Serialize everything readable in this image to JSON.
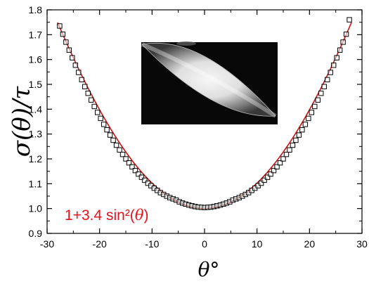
{
  "chart_data": {
    "type": "scatter",
    "xlabel": "θ°",
    "ylabel": "σ(θ)/τ",
    "xlim": [
      -30,
      30
    ],
    "ylim": [
      0.9,
      1.8
    ],
    "x_ticks": [
      -30,
      -20,
      -10,
      0,
      10,
      20,
      30
    ],
    "x_tick_labels": [
      "-30",
      "-20",
      "-10",
      "0",
      "10",
      "20",
      "30"
    ],
    "y_ticks": [
      0.9,
      1.0,
      1.1,
      1.2,
      1.3,
      1.4,
      1.5,
      1.6,
      1.7,
      1.8
    ],
    "y_tick_labels": [
      "0.9",
      "1.0",
      "1.1",
      "1.2",
      "1.3",
      "1.4",
      "1.5",
      "1.6",
      "1.7",
      "1.8"
    ],
    "grid": false,
    "annotation": {
      "prefix": "1+3.4 sin²(",
      "var": "θ",
      "suffix": ")",
      "color": "#e8101a"
    },
    "fit_curve": {
      "formula": "1+3.4 sin²(θ)",
      "coefficient": 3.4,
      "color": "#c81414"
    },
    "inset_image": {
      "content": "grayscale micrograph of a bright lens-shaped (lenticular) region",
      "position": "top-center"
    },
    "series": [
      {
        "marker": "open-square",
        "color": "#000000",
        "x": [
          -27.6,
          -27.0,
          -26.4,
          -25.8,
          -25.2,
          -24.6,
          -24.0,
          -23.4,
          -22.8,
          -22.2,
          -21.6,
          -21.0,
          -20.4,
          -19.8,
          -19.2,
          -18.6,
          -18.0,
          -17.4,
          -16.8,
          -16.2,
          -15.6,
          -15.0,
          -14.4,
          -13.8,
          -13.2,
          -12.6,
          -12.0,
          -11.4,
          -10.8,
          -10.2,
          -9.6,
          -9.0,
          -8.4,
          -7.8,
          -7.2,
          -6.6,
          -6.0,
          -5.4,
          -4.8,
          -4.2,
          -3.6,
          -3.0,
          -2.4,
          -1.8,
          -1.2,
          -0.6,
          0.0,
          0.6,
          1.2,
          1.8,
          2.4,
          3.0,
          3.6,
          4.2,
          4.8,
          5.4,
          6.0,
          6.6,
          7.2,
          7.8,
          8.4,
          9.0,
          9.6,
          10.2,
          10.8,
          11.4,
          12.0,
          12.6,
          13.2,
          13.8,
          14.4,
          15.0,
          15.6,
          16.2,
          16.8,
          17.4,
          18.0,
          18.6,
          19.2,
          19.8,
          20.4,
          21.0,
          21.6,
          22.2,
          22.8,
          23.4,
          24.0,
          24.6,
          25.2,
          25.8,
          26.4,
          27.0,
          27.6
        ],
        "y": [
          1.735,
          1.702,
          1.67,
          1.638,
          1.607,
          1.577,
          1.548,
          1.519,
          1.491,
          1.464,
          1.437,
          1.411,
          1.387,
          1.363,
          1.339,
          1.317,
          1.296,
          1.275,
          1.255,
          1.236,
          1.218,
          1.2,
          1.184,
          1.168,
          1.153,
          1.139,
          1.126,
          1.114,
          1.102,
          1.092,
          1.082,
          1.073,
          1.064,
          1.057,
          1.05,
          1.044,
          1.039,
          1.034,
          1.027,
          1.022,
          1.018,
          1.014,
          1.011,
          1.008,
          1.006,
          1.005,
          1.004,
          1.005,
          1.006,
          1.008,
          1.011,
          1.014,
          1.018,
          1.022,
          1.027,
          1.034,
          1.039,
          1.044,
          1.05,
          1.057,
          1.064,
          1.073,
          1.082,
          1.092,
          1.102,
          1.114,
          1.126,
          1.139,
          1.153,
          1.168,
          1.184,
          1.2,
          1.218,
          1.236,
          1.255,
          1.275,
          1.296,
          1.317,
          1.339,
          1.363,
          1.387,
          1.411,
          1.437,
          1.464,
          1.491,
          1.519,
          1.548,
          1.577,
          1.607,
          1.638,
          1.67,
          1.702,
          1.76
        ]
      }
    ]
  }
}
